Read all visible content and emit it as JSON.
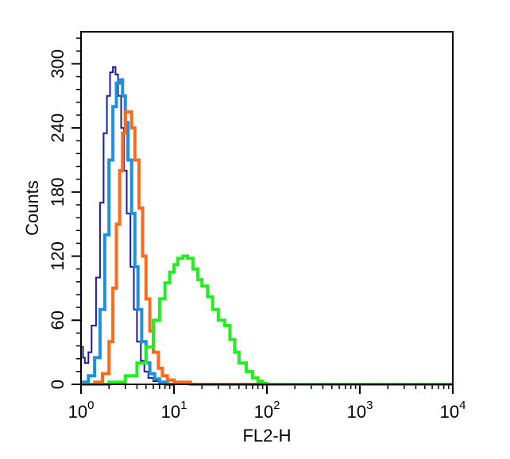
{
  "chart_data": {
    "type": "line",
    "title": "",
    "xlabel": "FL2-H",
    "ylabel": "Counts",
    "x_scale": "log",
    "xlim": [
      1,
      10000
    ],
    "ylim": [
      0,
      330
    ],
    "grid": false,
    "legend": "none",
    "x_ticks": [
      {
        "value": 1,
        "base": "10",
        "exp": "0"
      },
      {
        "value": 10,
        "base": "10",
        "exp": "1"
      },
      {
        "value": 100,
        "base": "10",
        "exp": "2"
      },
      {
        "value": 1000,
        "base": "10",
        "exp": "3"
      },
      {
        "value": 10000,
        "base": "10",
        "exp": "4"
      }
    ],
    "y_ticks": [
      {
        "value": 0,
        "label": "0"
      },
      {
        "value": 60,
        "label": "60"
      },
      {
        "value": 120,
        "label": "120"
      },
      {
        "value": 180,
        "label": "180"
      },
      {
        "value": 240,
        "label": "240"
      },
      {
        "value": 300,
        "label": "300"
      }
    ],
    "series": [
      {
        "color": "#1a1aa0",
        "stroke": 2,
        "x": [
          1.0,
          1.05,
          1.1,
          1.2,
          1.3,
          1.45,
          1.6,
          1.75,
          1.9,
          2.05,
          2.2,
          2.35,
          2.5,
          2.7,
          2.9,
          3.1,
          3.4,
          3.7,
          4.0,
          4.4,
          4.8,
          5.3,
          6.0,
          7.0,
          8.5,
          10.0
        ],
        "y": [
          35,
          25,
          20,
          30,
          55,
          100,
          170,
          235,
          270,
          292,
          297,
          290,
          270,
          240,
          200,
          160,
          110,
          70,
          40,
          22,
          12,
          6,
          3,
          1,
          0,
          0
        ]
      },
      {
        "color": "#1e90e0",
        "stroke": 4,
        "x": [
          1.0,
          1.2,
          1.4,
          1.6,
          1.8,
          2.0,
          2.2,
          2.4,
          2.6,
          2.8,
          3.0,
          3.2,
          3.5,
          3.8,
          4.1,
          4.5,
          5.0,
          5.5,
          6.2,
          7.0,
          8.5,
          10.0
        ],
        "y": [
          2,
          8,
          25,
          70,
          140,
          210,
          260,
          282,
          285,
          270,
          245,
          210,
          160,
          110,
          70,
          40,
          20,
          10,
          5,
          2,
          0,
          0
        ]
      },
      {
        "color": "#ff6a1a",
        "stroke": 4,
        "x": [
          1.0,
          1.4,
          1.7,
          2.0,
          2.2,
          2.4,
          2.6,
          2.8,
          3.0,
          3.2,
          3.5,
          3.8,
          4.2,
          4.6,
          5.0,
          5.5,
          6.0,
          6.8,
          7.5,
          8.5,
          10.0,
          15.0,
          100.0
        ],
        "y": [
          0,
          2,
          10,
          40,
          90,
          150,
          200,
          235,
          255,
          255,
          240,
          210,
          165,
          120,
          80,
          50,
          30,
          15,
          8,
          4,
          2,
          0,
          0
        ]
      },
      {
        "color": "#22ee22",
        "stroke": 4,
        "x": [
          1.0,
          2.0,
          3.0,
          4.0,
          5.0,
          6.0,
          7.0,
          8.0,
          9.0,
          10.0,
          11.0,
          12.5,
          14.0,
          16.0,
          18.0,
          20.0,
          23.0,
          26.0,
          30.0,
          35.0,
          40.0,
          45.0,
          50.0,
          60.0,
          70.0,
          80.0,
          90.0,
          100.0,
          120.0,
          10000.0
        ],
        "y": [
          0,
          2,
          8,
          20,
          35,
          60,
          80,
          95,
          105,
          112,
          118,
          120,
          118,
          108,
          98,
          92,
          82,
          70,
          60,
          55,
          42,
          30,
          20,
          12,
          6,
          3,
          1,
          0,
          0,
          0
        ]
      }
    ]
  }
}
